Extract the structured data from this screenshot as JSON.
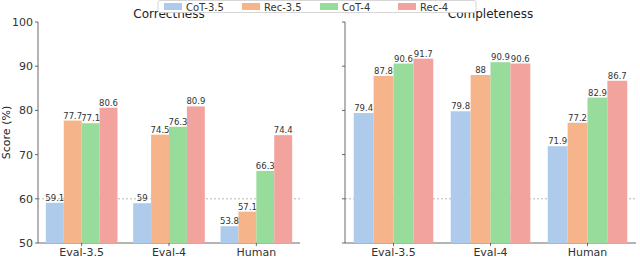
{
  "chart_data": [
    {
      "type": "bar",
      "title": "Correctness",
      "y_label": "Score (%)",
      "categories": [
        "Eval-3.5",
        "Eval-4",
        "Human"
      ],
      "series": [
        {
          "name": "CoT-3.5",
          "color": "#aecbeb",
          "values": [
            59.1,
            59.0,
            53.8
          ]
        },
        {
          "name": "Rec-3.5",
          "color": "#f5b48a",
          "values": [
            77.7,
            74.5,
            57.1
          ]
        },
        {
          "name": "CoT-4",
          "color": "#98dc9c",
          "values": [
            77.1,
            76.3,
            66.3
          ]
        },
        {
          "name": "Rec-4",
          "color": "#f3a39d",
          "values": [
            80.6,
            80.9,
            74.4
          ]
        }
      ],
      "ylim": [
        50,
        100
      ],
      "yticks": [
        50,
        60,
        70,
        80,
        90,
        100
      ],
      "reference_line": 60,
      "data_labels": true,
      "legend": "top"
    },
    {
      "type": "bar",
      "title": "Completeness",
      "categories": [
        "Eval-3.5",
        "Eval-4",
        "Human"
      ],
      "series": [
        {
          "name": "CoT-3.5",
          "color": "#aecbeb",
          "values": [
            79.4,
            79.8,
            71.9
          ]
        },
        {
          "name": "Rec-3.5",
          "color": "#f5b48a",
          "values": [
            87.8,
            88.0,
            77.2
          ]
        },
        {
          "name": "CoT-4",
          "color": "#98dc9c",
          "values": [
            90.6,
            90.9,
            82.9
          ]
        },
        {
          "name": "Rec-4",
          "color": "#f3a39d",
          "values": [
            91.7,
            90.6,
            86.7
          ]
        }
      ],
      "ylim": [
        50,
        100
      ],
      "yticks": [
        50,
        60,
        70,
        80,
        90,
        100
      ],
      "reference_line": 60,
      "data_labels": true,
      "tick_labels": "x"
    }
  ]
}
